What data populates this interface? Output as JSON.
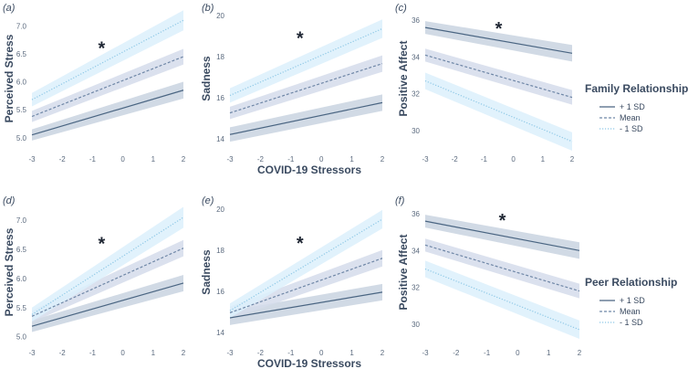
{
  "figure": {
    "shared_xlabel_top": "COVID-19 Stressors",
    "shared_xlabel_bottom": "COVID-19 Stressors",
    "legends": [
      {
        "title": "Family Relationship",
        "items": [
          "+ 1 SD",
          "Mean",
          "- 1 SD"
        ]
      },
      {
        "title": "Peer Relationship",
        "items": [
          "+ 1 SD",
          "Mean",
          "- 1 SD"
        ]
      }
    ]
  },
  "colors": {
    "plus1": "#4a6582",
    "mean": "#6e86a6",
    "minus1": "#8ec8e6",
    "band_plus1": "#c9d3e0",
    "band_mean": "#d5dceb",
    "band_minus1": "#dcf0fb",
    "axis_text": "#3a4a60",
    "tick": "#5b6a7e"
  },
  "chart_data": [
    {
      "panel": "(a)",
      "type": "line",
      "ylabel": "Perceived Stress",
      "xlim": [
        -3,
        2
      ],
      "ylim": [
        4.8,
        7.3
      ],
      "xticks": [
        -3,
        -2,
        -1,
        0,
        1,
        2
      ],
      "yticks": [
        5.0,
        5.5,
        6.0,
        6.5,
        7.0
      ],
      "series": [
        {
          "name": "+ 1 SD",
          "x": [
            -3,
            2
          ],
          "y": [
            5.05,
            5.85
          ],
          "band": [
            0.1,
            0.15
          ]
        },
        {
          "name": "Mean",
          "x": [
            -3,
            2
          ],
          "y": [
            5.38,
            6.45
          ],
          "band": [
            0.1,
            0.14
          ]
        },
        {
          "name": "- 1 SD",
          "x": [
            -3,
            2
          ],
          "y": [
            5.68,
            7.1
          ],
          "band": [
            0.12,
            0.18
          ]
        }
      ],
      "annotation": {
        "text": "*",
        "x": -0.7,
        "y": 6.62
      }
    },
    {
      "panel": "(b)",
      "type": "line",
      "ylabel": "Sadness",
      "xlim": [
        -3,
        2
      ],
      "ylim": [
        13.5,
        20.3
      ],
      "xticks": [
        -3,
        -2,
        -1,
        0,
        1,
        2
      ],
      "yticks": [
        14,
        16,
        18,
        20
      ],
      "series": [
        {
          "name": "+ 1 SD",
          "x": [
            -3,
            2
          ],
          "y": [
            14.2,
            15.75
          ],
          "band": [
            0.35,
            0.4
          ]
        },
        {
          "name": "Mean",
          "x": [
            -3,
            2
          ],
          "y": [
            15.25,
            17.65
          ],
          "band": [
            0.3,
            0.4
          ]
        },
        {
          "name": "- 1 SD",
          "x": [
            -3,
            2
          ],
          "y": [
            16.1,
            19.35
          ],
          "band": [
            0.35,
            0.45
          ]
        }
      ],
      "annotation": {
        "text": "*",
        "x": -0.7,
        "y": 18.95
      }
    },
    {
      "panel": "(c)",
      "type": "line",
      "ylabel": "Positive Affect",
      "xlim": [
        -3,
        2
      ],
      "ylim": [
        29.0,
        36.6
      ],
      "xticks": [
        -3,
        -2,
        -1,
        0,
        1,
        2
      ],
      "yticks": [
        30,
        32,
        34,
        36
      ],
      "series": [
        {
          "name": "+ 1 SD",
          "x": [
            -3,
            2
          ],
          "y": [
            35.6,
            34.2
          ],
          "band": [
            0.35,
            0.45
          ]
        },
        {
          "name": "Mean",
          "x": [
            -3,
            2
          ],
          "y": [
            34.1,
            31.8
          ],
          "band": [
            0.35,
            0.4
          ]
        },
        {
          "name": "- 1 SD",
          "x": [
            -3,
            2
          ],
          "y": [
            32.7,
            29.4
          ],
          "band": [
            0.45,
            0.5
          ]
        }
      ],
      "annotation": {
        "text": "*",
        "x": -0.5,
        "y": 35.6
      }
    },
    {
      "panel": "(d)",
      "type": "line",
      "ylabel": "Perceived Stress",
      "xlim": [
        -3,
        2
      ],
      "ylim": [
        4.9,
        7.3
      ],
      "xticks": [
        -3,
        -2,
        -1,
        0,
        1,
        2
      ],
      "yticks": [
        5.0,
        5.5,
        6.0,
        6.5,
        7.0
      ],
      "series": [
        {
          "name": "+ 1 SD",
          "x": [
            -3,
            2
          ],
          "y": [
            5.18,
            5.92
          ],
          "band": [
            0.1,
            0.14
          ]
        },
        {
          "name": "Mean",
          "x": [
            -3,
            2
          ],
          "y": [
            5.35,
            6.52
          ],
          "band": [
            0.1,
            0.14
          ]
        },
        {
          "name": "- 1 SD",
          "x": [
            -3,
            2
          ],
          "y": [
            5.38,
            7.05
          ],
          "band": [
            0.12,
            0.18
          ]
        }
      ],
      "annotation": {
        "text": "*",
        "x": -0.7,
        "y": 6.62
      }
    },
    {
      "panel": "(e)",
      "type": "line",
      "ylabel": "Sadness",
      "xlim": [
        -3,
        2
      ],
      "ylim": [
        13.5,
        20.3
      ],
      "xticks": [
        -3,
        -2,
        -1,
        0,
        1,
        2
      ],
      "yticks": [
        14,
        16,
        18,
        20
      ],
      "series": [
        {
          "name": "+ 1 SD",
          "x": [
            -3,
            2
          ],
          "y": [
            14.7,
            15.95
          ],
          "band": [
            0.35,
            0.4
          ]
        },
        {
          "name": "Mean",
          "x": [
            -3,
            2
          ],
          "y": [
            14.95,
            17.6
          ],
          "band": [
            0.3,
            0.4
          ]
        },
        {
          "name": "- 1 SD",
          "x": [
            -3,
            2
          ],
          "y": [
            15.05,
            19.5
          ],
          "band": [
            0.35,
            0.45
          ]
        }
      ],
      "annotation": {
        "text": "*",
        "x": -0.7,
        "y": 18.4
      }
    },
    {
      "panel": "(f)",
      "type": "line",
      "ylabel": "Positive Affect",
      "xlim": [
        -3,
        2
      ],
      "ylim": [
        29.0,
        36.6
      ],
      "xticks": [
        -3,
        -2,
        -1,
        0,
        1,
        2
      ],
      "yticks": [
        30,
        32,
        34,
        36
      ],
      "series": [
        {
          "name": "+ 1 SD",
          "x": [
            -3,
            2
          ],
          "y": [
            35.6,
            34.0
          ],
          "band": [
            0.35,
            0.45
          ]
        },
        {
          "name": "Mean",
          "x": [
            -3,
            2
          ],
          "y": [
            34.3,
            31.8
          ],
          "band": [
            0.35,
            0.4
          ]
        },
        {
          "name": "- 1 SD",
          "x": [
            -3,
            2
          ],
          "y": [
            33.0,
            29.7
          ],
          "band": [
            0.45,
            0.5
          ]
        }
      ],
      "annotation": {
        "text": "*",
        "x": -0.5,
        "y": 35.7
      }
    }
  ]
}
